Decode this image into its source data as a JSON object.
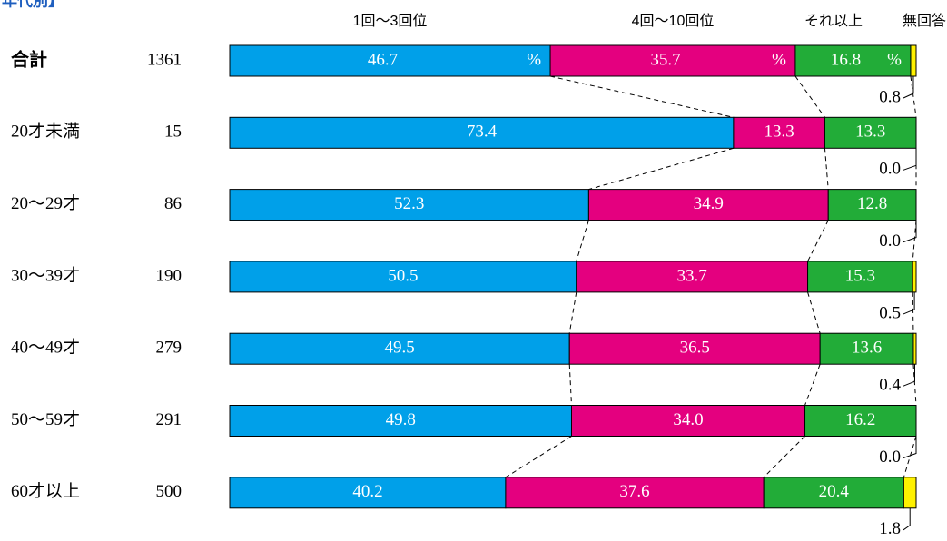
{
  "chart_data": {
    "type": "stacked-bar-100",
    "title": "年代別】",
    "unit": "%",
    "categories": [
      "合計",
      "20才未満",
      "20〜29才",
      "30〜39才",
      "40〜49才",
      "50〜59才",
      "60才以上"
    ],
    "counts": [
      1361,
      15,
      86,
      190,
      279,
      291,
      500
    ],
    "series": [
      {
        "name": "1回〜3回位",
        "color": "#00a0e9",
        "values": [
          46.7,
          73.4,
          52.3,
          50.5,
          49.5,
          49.8,
          40.2
        ],
        "value_labels": [
          "46.7",
          "73.4",
          "52.3",
          "50.5",
          "49.5",
          "49.8",
          "40.2"
        ]
      },
      {
        "name": "4回〜10回位",
        "color": "#e4007f",
        "values": [
          35.7,
          13.3,
          34.9,
          33.7,
          36.5,
          34.0,
          37.6
        ],
        "value_labels": [
          "35.7",
          "13.3",
          "34.9",
          "33.7",
          "36.5",
          "34.0",
          "37.6"
        ]
      },
      {
        "name": "それ以上",
        "color": "#22ac38",
        "values": [
          16.8,
          13.3,
          12.8,
          15.3,
          13.6,
          16.2,
          20.4
        ],
        "value_labels": [
          "16.8",
          "13.3",
          "12.8",
          "15.3",
          "13.6",
          "16.2",
          "20.4"
        ]
      },
      {
        "name": "無回答",
        "color": "#fff100",
        "values": [
          0.8,
          0.0,
          0.0,
          0.5,
          0.4,
          0.0,
          1.8
        ],
        "value_labels": [
          "0.8",
          "0.0",
          "0.0",
          "0.5",
          "0.4",
          "0.0",
          "1.8"
        ]
      }
    ]
  }
}
